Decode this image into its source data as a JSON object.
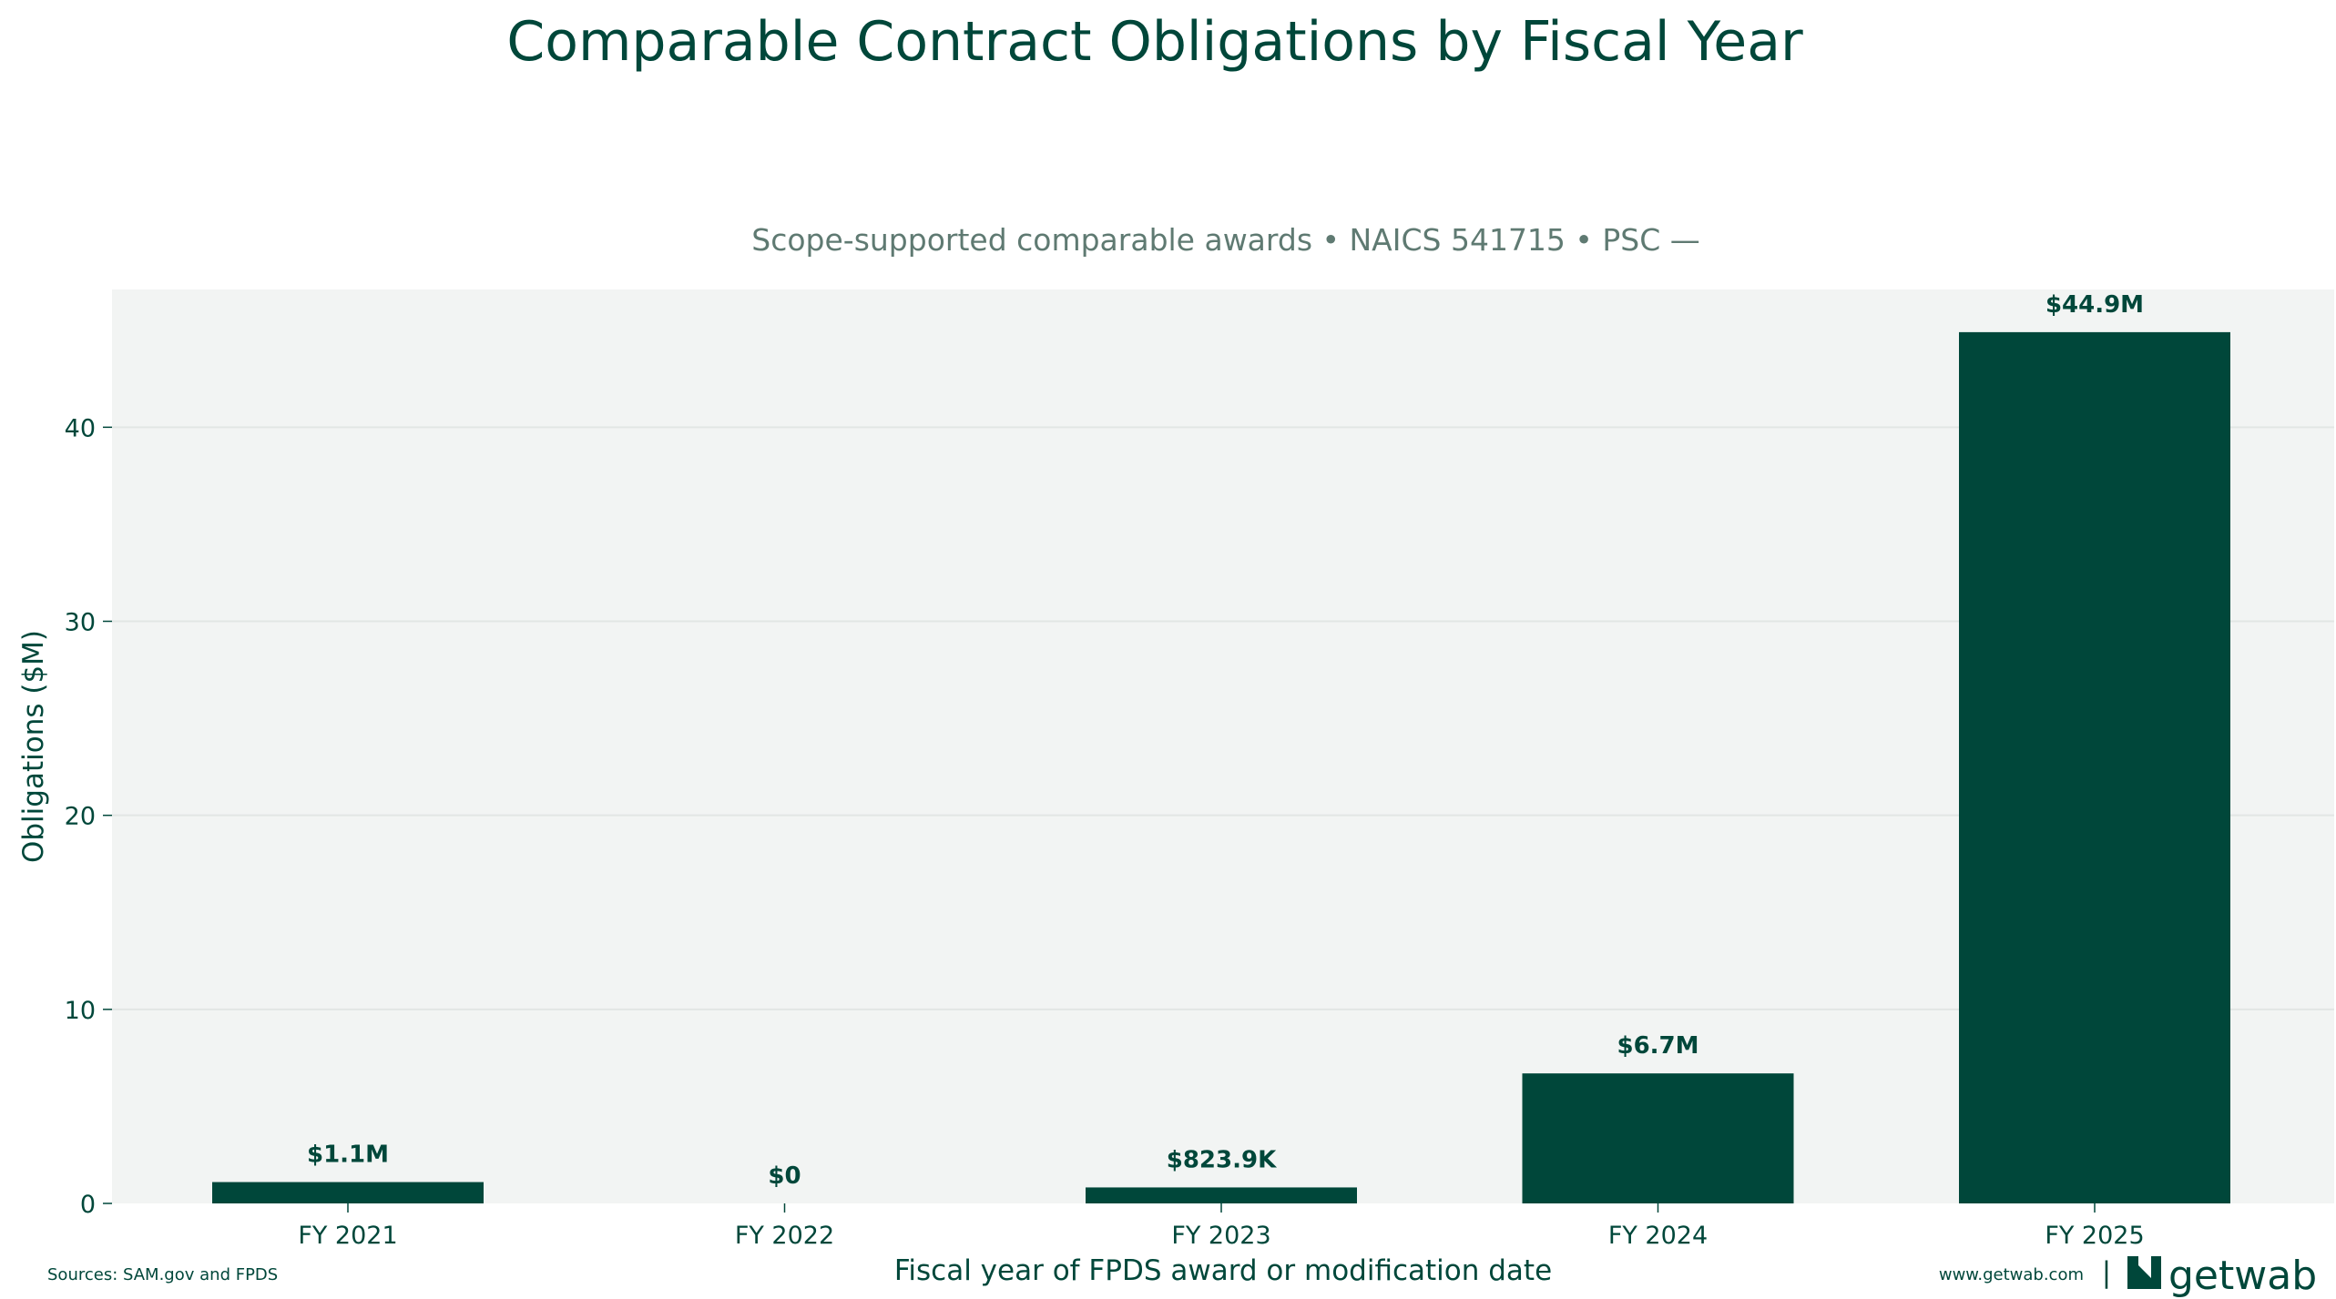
{
  "chart_data": {
    "type": "bar",
    "title": "Comparable Contract Obligations by Fiscal Year",
    "subtitle": "Scope-supported comparable awards • NAICS 541715 • PSC —",
    "xlabel": "Fiscal year of FPDS award or modification date",
    "ylabel": "Obligations ($M)",
    "categories": [
      "FY 2021",
      "FY 2022",
      "FY 2023",
      "FY 2024",
      "FY 2025"
    ],
    "values": [
      1.1,
      0,
      0.8239,
      6.7,
      44.9
    ],
    "data_labels": [
      "$1.1M",
      "$0",
      "$823.9K",
      "$6.7M",
      "$44.9M"
    ],
    "yticks": [
      0,
      10,
      20,
      30,
      40
    ],
    "ytick_labels": [
      "0",
      "10",
      "20",
      "30",
      "40"
    ],
    "ylim": [
      0,
      47.1
    ],
    "grid": "horizontal",
    "legend": "none",
    "colors": {
      "bar": "#00473a",
      "plot_background": "#f2f4f3",
      "grid": "#e2e6e4",
      "text": "#00473a",
      "subtitle": "#5f7a72"
    }
  },
  "footer": {
    "source": "Sources: SAM.gov and FPDS",
    "website": "www.getwab.com",
    "separator": "|",
    "brand_name": "getwab",
    "brand_icon": "getwab-logo-icon"
  }
}
